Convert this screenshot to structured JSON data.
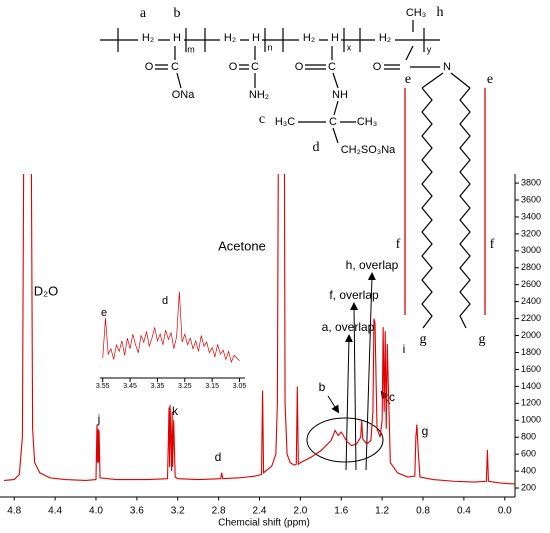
{
  "chart_data": [
    {
      "type": "line",
      "x_label": "Chemcial shift (ppm)",
      "color": "#e00000",
      "x": [
        4.9,
        4.8,
        4.75,
        4.72,
        4.7,
        4.64,
        4.62,
        4.6,
        4.55,
        4.45,
        4.3,
        4.1,
        4,
        3.99,
        3.985,
        3.98,
        3.975,
        3.97,
        3.96,
        3.8,
        3.5,
        3.3,
        3.285,
        3.28,
        3.275,
        3.26,
        3.255,
        3.25,
        3.24,
        3.225,
        3.2,
        3,
        2.78,
        2.77,
        2.76,
        2.6,
        2.45,
        2.38,
        2.37,
        2.36,
        2.32,
        2.28,
        2.24,
        2.225,
        2.21,
        2.16,
        2.15,
        2.13,
        2.1,
        2.06,
        2.04,
        2.03,
        2.02,
        2,
        1.9,
        1.8,
        1.7,
        1.66,
        1.63,
        1.6,
        1.55,
        1.5,
        1.45,
        1.41,
        1.4,
        1.39,
        1.35,
        1.31,
        1.29,
        1.28,
        1.27,
        1.25,
        1.22,
        1.2,
        1.19,
        1.18,
        1.17,
        1.16,
        1.15,
        1.12,
        1.05,
        0.95,
        0.88,
        0.87,
        0.86,
        0.85,
        0.83,
        0.7,
        0.5,
        0.3,
        0.18,
        0.17,
        0.16,
        0.05,
        -0.05,
        -0.1
      ],
      "values": [
        290,
        300,
        360,
        800,
        6000,
        6000,
        900,
        500,
        380,
        320,
        300,
        290,
        300,
        950,
        500,
        900,
        500,
        880,
        320,
        300,
        300,
        310,
        1150,
        450,
        1180,
        400,
        1100,
        450,
        1000,
        330,
        310,
        300,
        310,
        380,
        310,
        320,
        340,
        360,
        1350,
        380,
        420,
        460,
        600,
        1200,
        6000,
        6000,
        1200,
        600,
        500,
        470,
        480,
        1400,
        480,
        500,
        560,
        640,
        760,
        880,
        820,
        860,
        760,
        700,
        720,
        800,
        1000,
        780,
        720,
        760,
        1100,
        2200,
        2150,
        900,
        800,
        1000,
        2100,
        1100,
        2050,
        900,
        1900,
        500,
        380,
        330,
        340,
        800,
        950,
        700,
        330,
        300,
        280,
        270,
        280,
        650,
        280,
        260,
        250,
        250
      ],
      "xlim": [
        4.9,
        -0.1
      ],
      "ylim": [
        100,
        3900
      ],
      "xticks": [
        4.8,
        4.4,
        {
          "value": 4,
          "label": "4.0"
        },
        3.6,
        3.2,
        2.8,
        2.4,
        {
          "value": 2,
          "label": "2.0"
        },
        1.6,
        1.2,
        0.8,
        0.4,
        {
          "value": 0,
          "label": "0.0"
        }
      ],
      "yticks": [
        200,
        400,
        600,
        800,
        1000,
        1200,
        1400,
        1600,
        1800,
        2000,
        2200,
        2400,
        2600,
        2800,
        3000,
        3200,
        3400,
        3600,
        3800
      ],
      "annotations": [
        "D₂O",
        "Acetone",
        "h, overlap",
        "f, overlap",
        "a, overlap",
        "b",
        "c",
        "i",
        "j",
        "k",
        "d",
        "g"
      ]
    },
    {
      "type": "line",
      "color": "#e00000",
      "x": [
        3.55,
        3.54,
        3.53,
        3.52,
        3.51,
        3.5,
        3.49,
        3.48,
        3.47,
        3.46,
        3.45,
        3.44,
        3.43,
        3.42,
        3.41,
        3.4,
        3.39,
        3.38,
        3.37,
        3.36,
        3.35,
        3.34,
        3.33,
        3.32,
        3.31,
        3.3,
        3.29,
        3.28,
        3.27,
        3.26,
        3.25,
        3.24,
        3.23,
        3.22,
        3.21,
        3.2,
        3.19,
        3.18,
        3.17,
        3.16,
        3.15,
        3.14,
        3.13,
        3.12,
        3.11,
        3.1,
        3.09,
        3.08,
        3.07,
        3.06,
        3.05
      ],
      "values": [
        45,
        75,
        48,
        52,
        44,
        55,
        50,
        58,
        47,
        60,
        52,
        63,
        55,
        49,
        62,
        57,
        65,
        54,
        60,
        68,
        58,
        63,
        55,
        66,
        59,
        64,
        52,
        61,
        95,
        57,
        63,
        55,
        60,
        52,
        58,
        50,
        62,
        54,
        57,
        49,
        53,
        46,
        55,
        48,
        51,
        44,
        50,
        42,
        47,
        45,
        43
      ],
      "xlim": [
        3.56,
        3.03
      ],
      "ylim": [
        30,
        100
      ],
      "xticks": [
        3.55,
        3.45,
        3.35,
        3.25,
        3.15,
        3.05
      ],
      "annotations": [
        "e",
        "d"
      ]
    }
  ],
  "structure": {
    "labels": [
      "a",
      "b",
      "h",
      "H₂",
      "H",
      "m",
      "H₂",
      "H",
      "n",
      "H₂",
      "H",
      "x",
      "H₂",
      "CH₃",
      "y",
      "O",
      "C",
      "ONa",
      "O",
      "C",
      "NH₂",
      "C",
      "O",
      "NH",
      "c",
      "H₃C",
      "C",
      "CH₃",
      "d",
      "CH₂SO₃Na",
      "O",
      "N",
      "e",
      "e",
      "f",
      "f",
      "g",
      "g"
    ]
  }
}
